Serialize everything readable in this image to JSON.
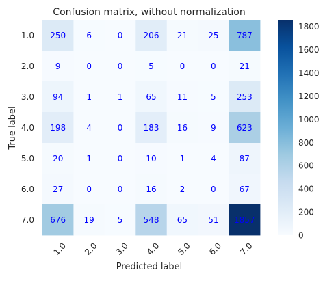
{
  "chart_data": {
    "type": "heatmap",
    "title": "Confusion matrix, without normalization",
    "xlabel": "Predicted label",
    "ylabel": "True label",
    "x_categories": [
      "1.0",
      "2.0",
      "3.0",
      "4.0",
      "5.0",
      "6.0",
      "7.0"
    ],
    "y_categories": [
      "1.0",
      "2.0",
      "3.0",
      "4.0",
      "5.0",
      "6.0",
      "7.0"
    ],
    "matrix": [
      [
        250,
        6,
        0,
        206,
        21,
        25,
        787
      ],
      [
        9,
        0,
        0,
        5,
        0,
        0,
        21
      ],
      [
        94,
        1,
        1,
        65,
        11,
        5,
        253
      ],
      [
        198,
        4,
        0,
        183,
        16,
        9,
        623
      ],
      [
        20,
        1,
        0,
        10,
        1,
        4,
        87
      ],
      [
        27,
        0,
        0,
        16,
        2,
        0,
        67
      ],
      [
        676,
        19,
        5,
        548,
        65,
        51,
        1857
      ]
    ],
    "colorbar": {
      "range": [
        0,
        1857
      ],
      "ticks": [
        0,
        200,
        400,
        600,
        800,
        1000,
        1200,
        1400,
        1600,
        1800
      ],
      "colormap": "Blues"
    },
    "cell_text_color": "#0000ff",
    "x_tick_rotation_deg": 45
  }
}
